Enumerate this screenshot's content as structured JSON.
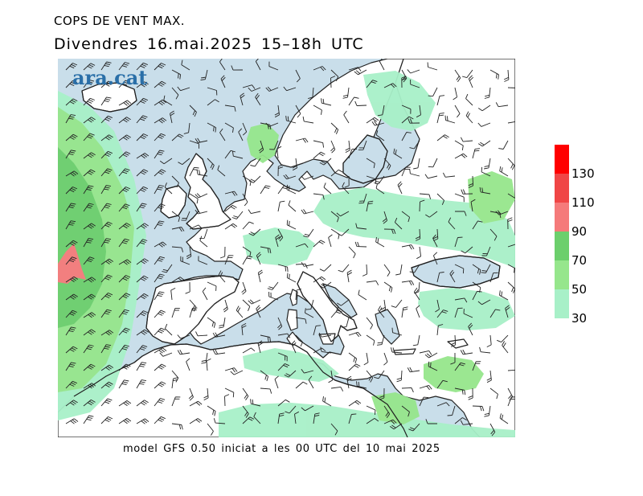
{
  "header": {
    "title": "COPS DE VENT MAX.",
    "subtitle": "Divendres  16.mai.2025  15–18h  UTC"
  },
  "map": {
    "logo_text": "ara.cat",
    "region": "Europe and Mediterranean",
    "colors": {
      "sea": "#c9deea",
      "land": "#ffffff",
      "coast": "#222222",
      "barb": "#222222"
    }
  },
  "legend": {
    "levels": [
      {
        "label": "30",
        "color": "#a8f0c8"
      },
      {
        "label": "50",
        "color": "#96e68c"
      },
      {
        "label": "70",
        "color": "#6ccf6c"
      },
      {
        "label": "90",
        "color": "#f57a7a"
      },
      {
        "label": "110",
        "color": "#f04646"
      },
      {
        "label": "130",
        "color": "#ff0000"
      }
    ],
    "bands": [
      {
        "from": 30,
        "to": 50,
        "color": "#a8f0c8"
      },
      {
        "from": 50,
        "to": 70,
        "color": "#96e68c"
      },
      {
        "from": 70,
        "to": 90,
        "color": "#6ccf6c"
      },
      {
        "from": 90,
        "to": 110,
        "color": "#f57a7a"
      },
      {
        "from": 110,
        "to": 130,
        "color": "#f04646"
      },
      {
        "from": 130,
        "to": 150,
        "color": "#ff0000"
      }
    ]
  },
  "footer": {
    "text": "model GFS 0.50 iniciat a les 00 UTC del 10 mai 2025"
  }
}
